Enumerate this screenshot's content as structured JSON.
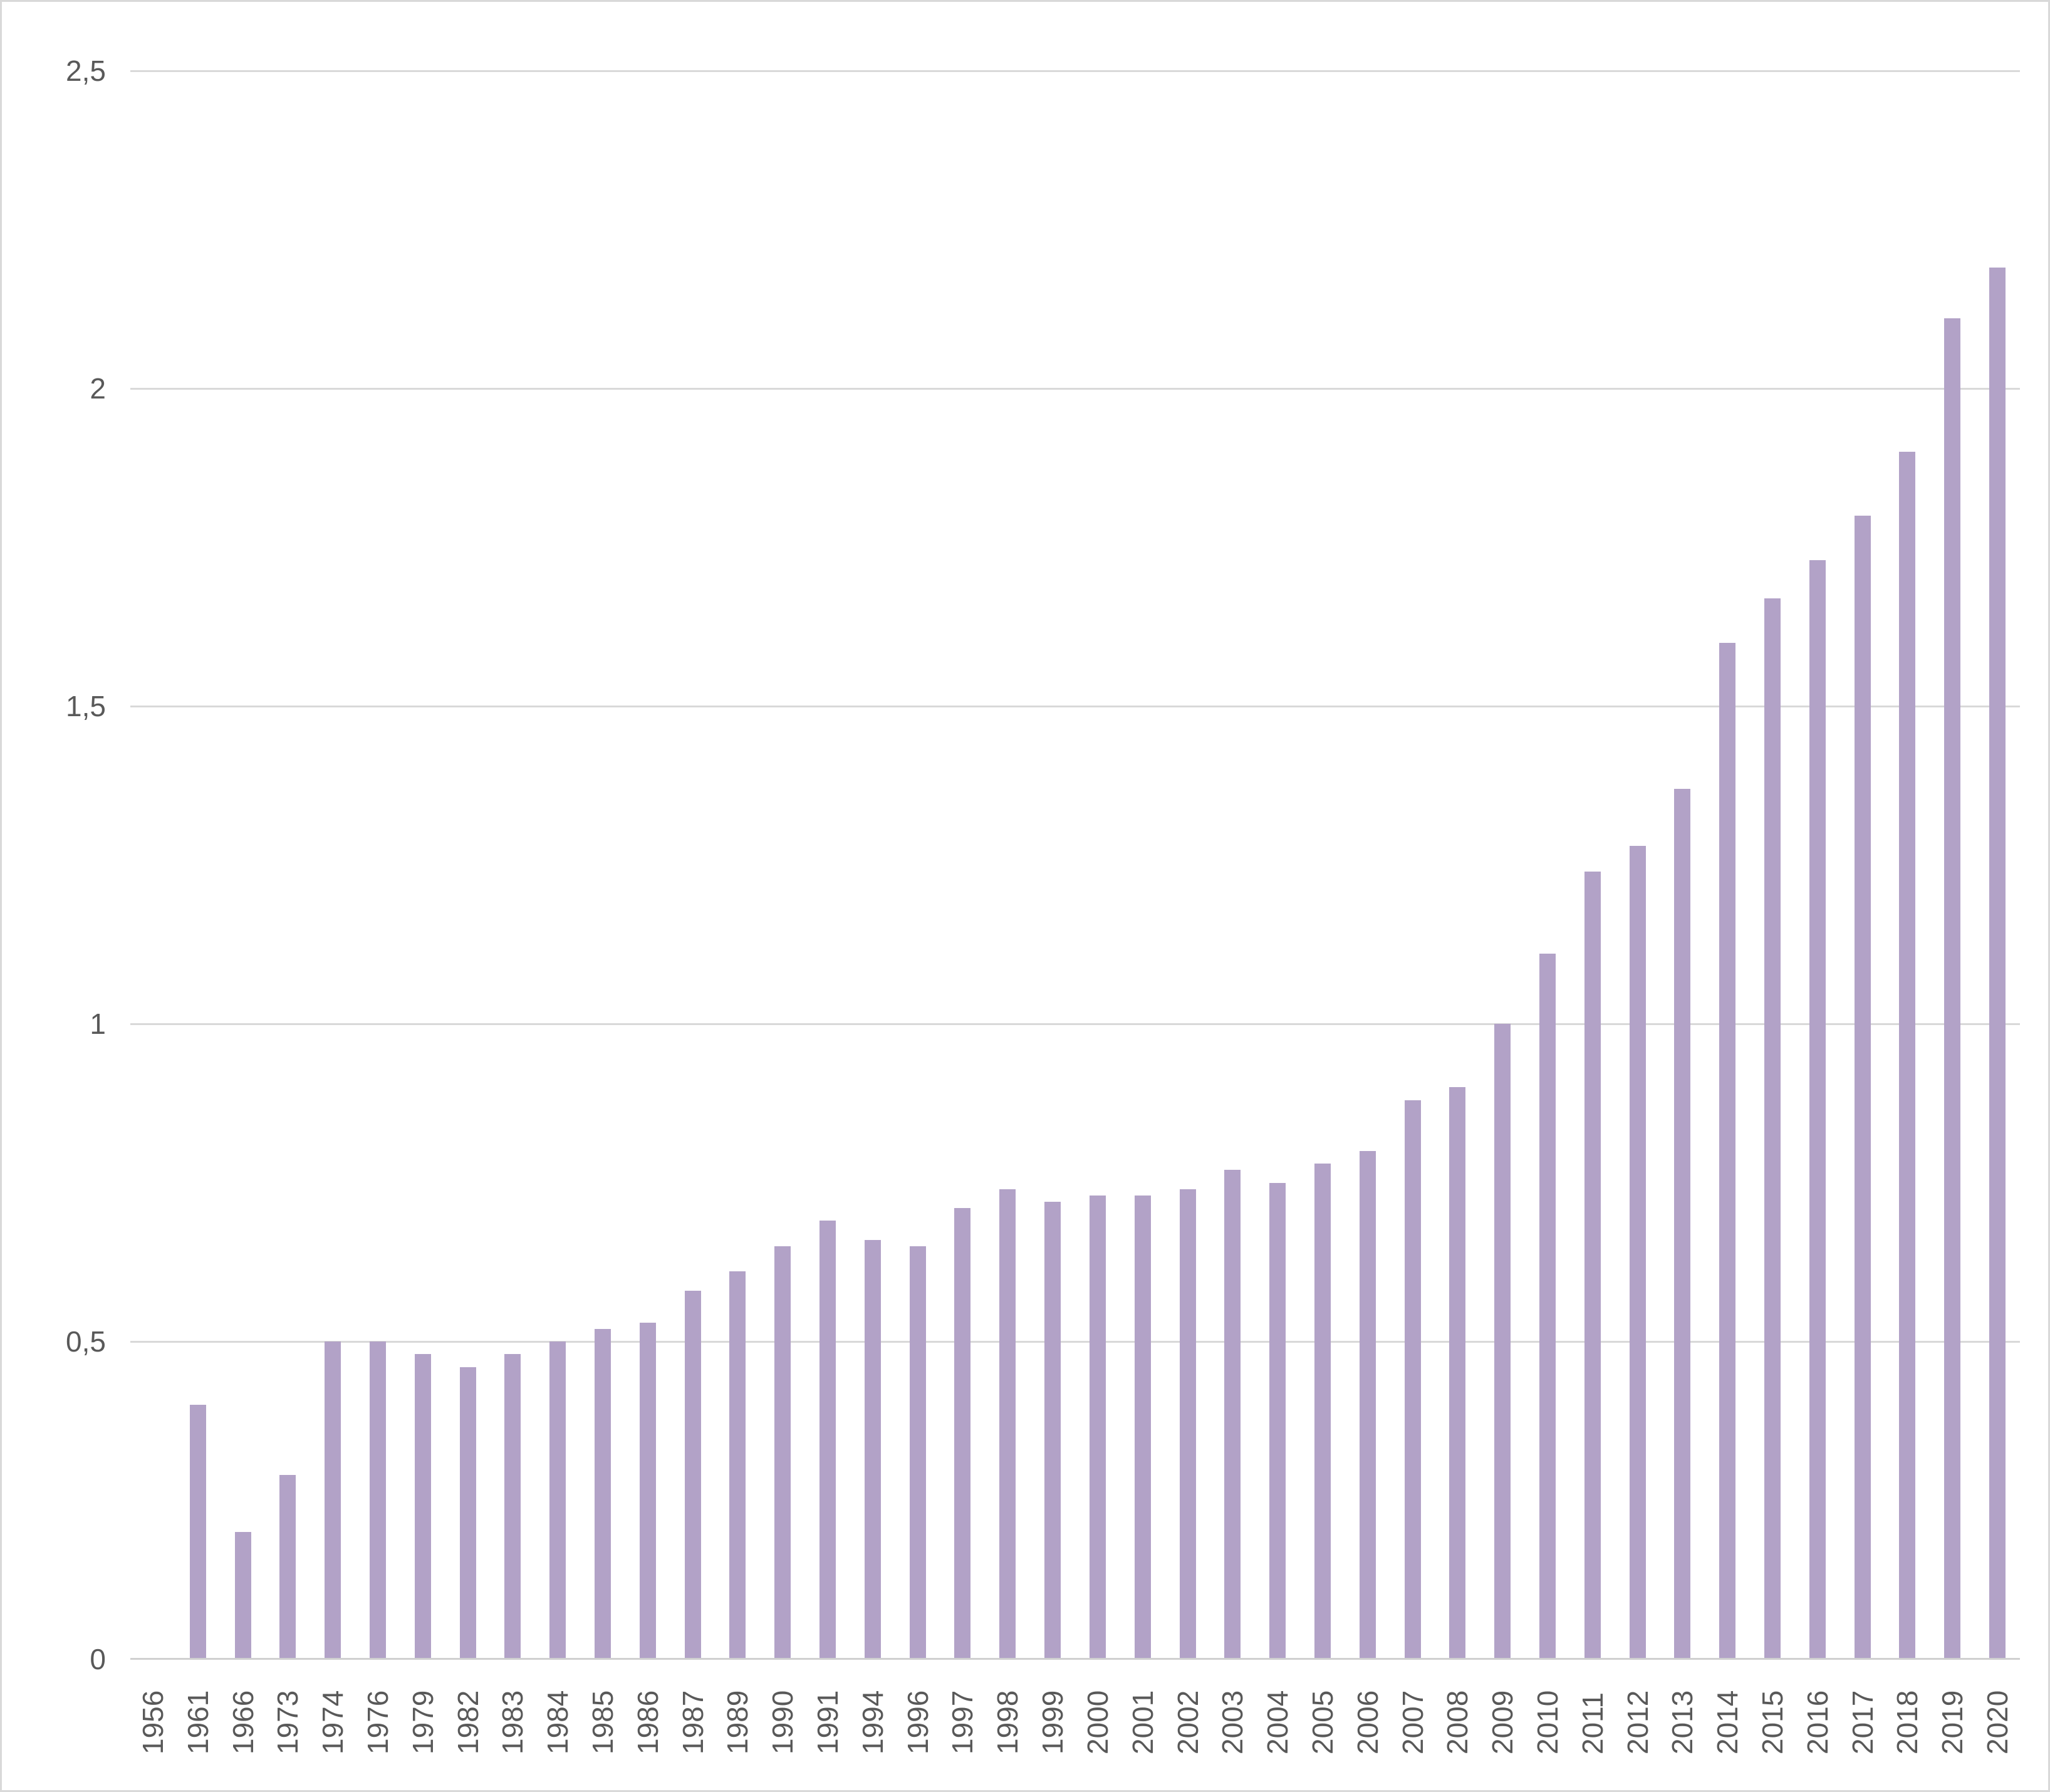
{
  "chart_data": {
    "type": "bar",
    "title": "",
    "xlabel": "",
    "ylabel": "",
    "legend": false,
    "grid": "horizontal-major",
    "ylim": [
      0,
      2.5
    ],
    "yticks": [
      {
        "value": 0,
        "label": "0"
      },
      {
        "value": 0.5,
        "label": "0,5"
      },
      {
        "value": 1,
        "label": "1"
      },
      {
        "value": 1.5,
        "label": "1,5"
      },
      {
        "value": 2,
        "label": "2"
      },
      {
        "value": 2.5,
        "label": "2,5"
      }
    ],
    "decimal_separator": ",",
    "x_label_rotation_deg": 90,
    "categories": [
      "1956",
      "1961",
      "1966",
      "1973",
      "1974",
      "1976",
      "1979",
      "1982",
      "1983",
      "1984",
      "1985",
      "1986",
      "1987",
      "1989",
      "1990",
      "1991",
      "1994",
      "1996",
      "1997",
      "1998",
      "1999",
      "2000",
      "2001",
      "2002",
      "2003",
      "2004",
      "2005",
      "2006",
      "2007",
      "2008",
      "2009",
      "2010",
      "2011",
      "2012",
      "2013",
      "2014",
      "2015",
      "2016",
      "2017",
      "2018",
      "2019",
      "2020"
    ],
    "values": [
      null,
      0.4,
      0.2,
      0.29,
      0.5,
      0.5,
      0.48,
      0.46,
      0.48,
      0.5,
      0.52,
      0.53,
      0.58,
      0.61,
      0.65,
      0.69,
      0.66,
      0.65,
      0.71,
      0.74,
      0.72,
      0.73,
      0.73,
      0.74,
      0.77,
      0.75,
      0.78,
      0.8,
      0.88,
      0.9,
      1.0,
      1.11,
      1.24,
      1.28,
      1.37,
      1.6,
      1.67,
      1.73,
      1.8,
      1.9,
      2.11,
      2.19
    ],
    "colors": {
      "bar": "#b2a2c7",
      "gridline": "#d9d9d9",
      "axis_line": "#d0d0d0",
      "tick_label": "#595959",
      "chart_border": "#d9d9d9",
      "background": "#ffffff"
    }
  }
}
